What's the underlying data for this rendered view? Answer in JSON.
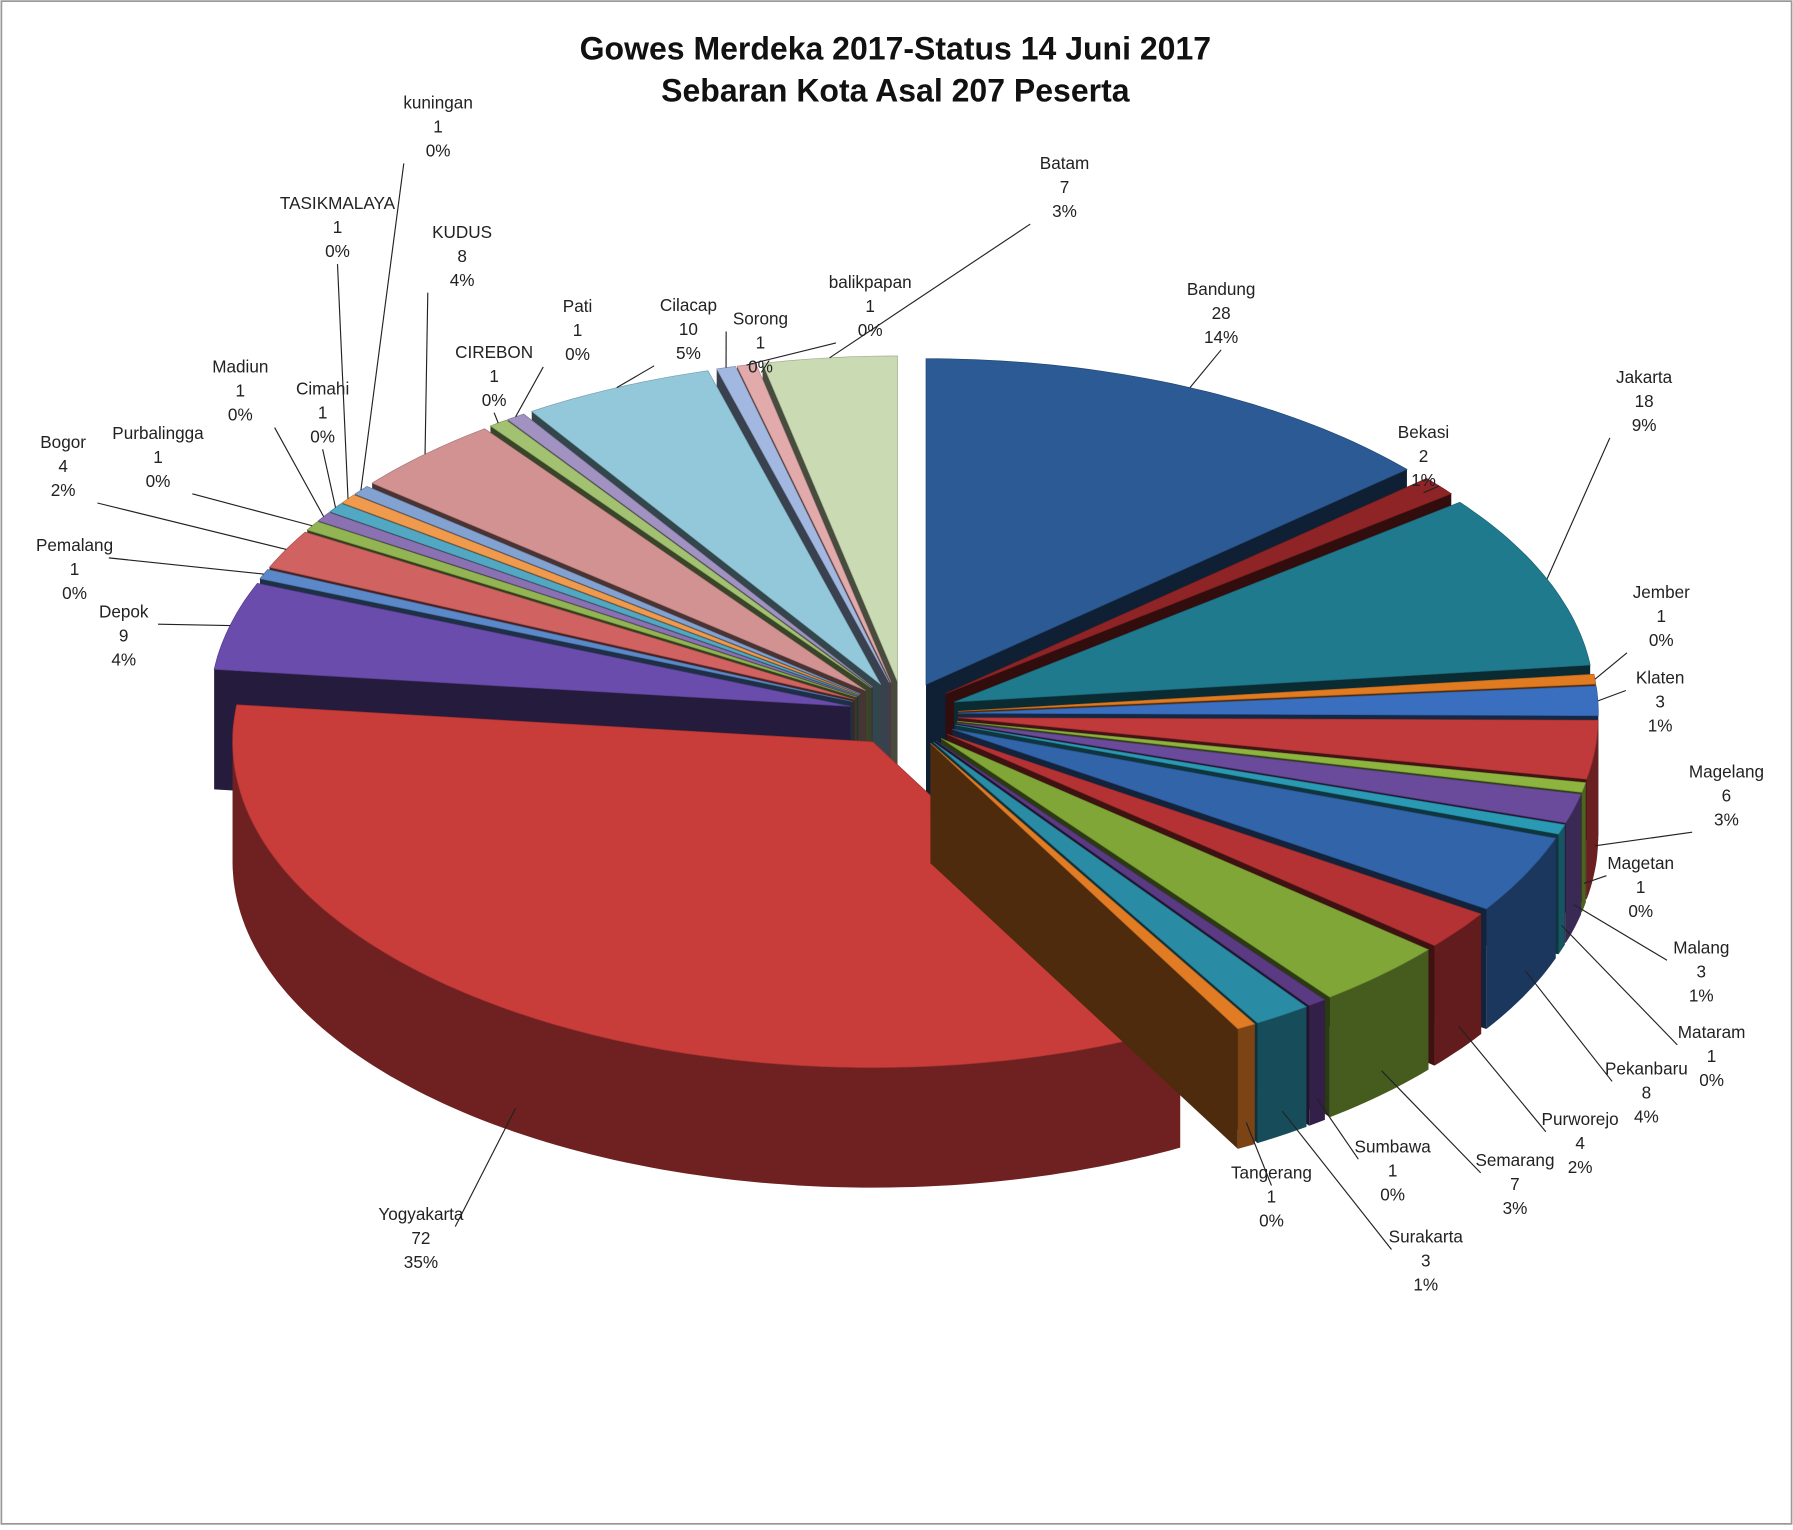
{
  "chart_data": {
    "type": "pie3d",
    "title": "Gowes Merdeka 2017-Status 14 Juni 2017",
    "subtitle": "Sebaran Kota Asal 207 Peserta",
    "categories": [
      "Bandung",
      "Bekasi",
      "Jakarta",
      "Jember",
      "Klaten",
      "Magelang",
      "Magetan",
      "Malang",
      "Mataram",
      "Pekanbaru",
      "Purworejo",
      "Semarang",
      "Sumbawa",
      "Surakarta",
      "Tangerang",
      "Yogyakarta",
      "Depok",
      "Pemalang",
      "Bogor",
      "Purbalingga",
      "Madiun",
      "Cimahi",
      "TASIKMALAYA",
      "kuningan",
      "KUDUS",
      "CIREBON",
      "Pati",
      "Cilacap",
      "Sorong",
      "balikpapan",
      "Batam"
    ],
    "values": [
      28,
      2,
      18,
      1,
      3,
      6,
      1,
      3,
      1,
      8,
      4,
      7,
      1,
      3,
      1,
      72,
      9,
      1,
      4,
      1,
      1,
      1,
      1,
      1,
      8,
      1,
      1,
      10,
      1,
      1,
      7
    ],
    "percent_labels": [
      "14%",
      "1%",
      "9%",
      "0%",
      "1%",
      "3%",
      "0%",
      "1%",
      "0%",
      "4%",
      "2%",
      "3%",
      "0%",
      "1%",
      "0%",
      "35%",
      "4%",
      "0%",
      "2%",
      "0%",
      "0%",
      "0%",
      "0%",
      "0%",
      "4%",
      "0%",
      "0%",
      "5%",
      "0%",
      "0%",
      "3%"
    ],
    "colors": [
      "#2b5a94",
      "#8e2426",
      "#1f7a8e",
      "#e07b22",
      "#3a6fc0",
      "#c0393b",
      "#8db43e",
      "#6a4a9a",
      "#2a9ab4",
      "#3264aa",
      "#b43234",
      "#7fa636",
      "#5a3a82",
      "#2a8ca4",
      "#e27c24",
      "#c83c3a",
      "#6a4cac",
      "#5a88c8",
      "#d06262",
      "#92b452",
      "#8a72b2",
      "#52a8c2",
      "#f09a4e",
      "#82a2d2",
      "#d29292",
      "#a2c272",
      "#a292c2",
      "#92c8da",
      "#a2b8e0",
      "#e2aaaa",
      "#cadab2"
    ]
  }
}
